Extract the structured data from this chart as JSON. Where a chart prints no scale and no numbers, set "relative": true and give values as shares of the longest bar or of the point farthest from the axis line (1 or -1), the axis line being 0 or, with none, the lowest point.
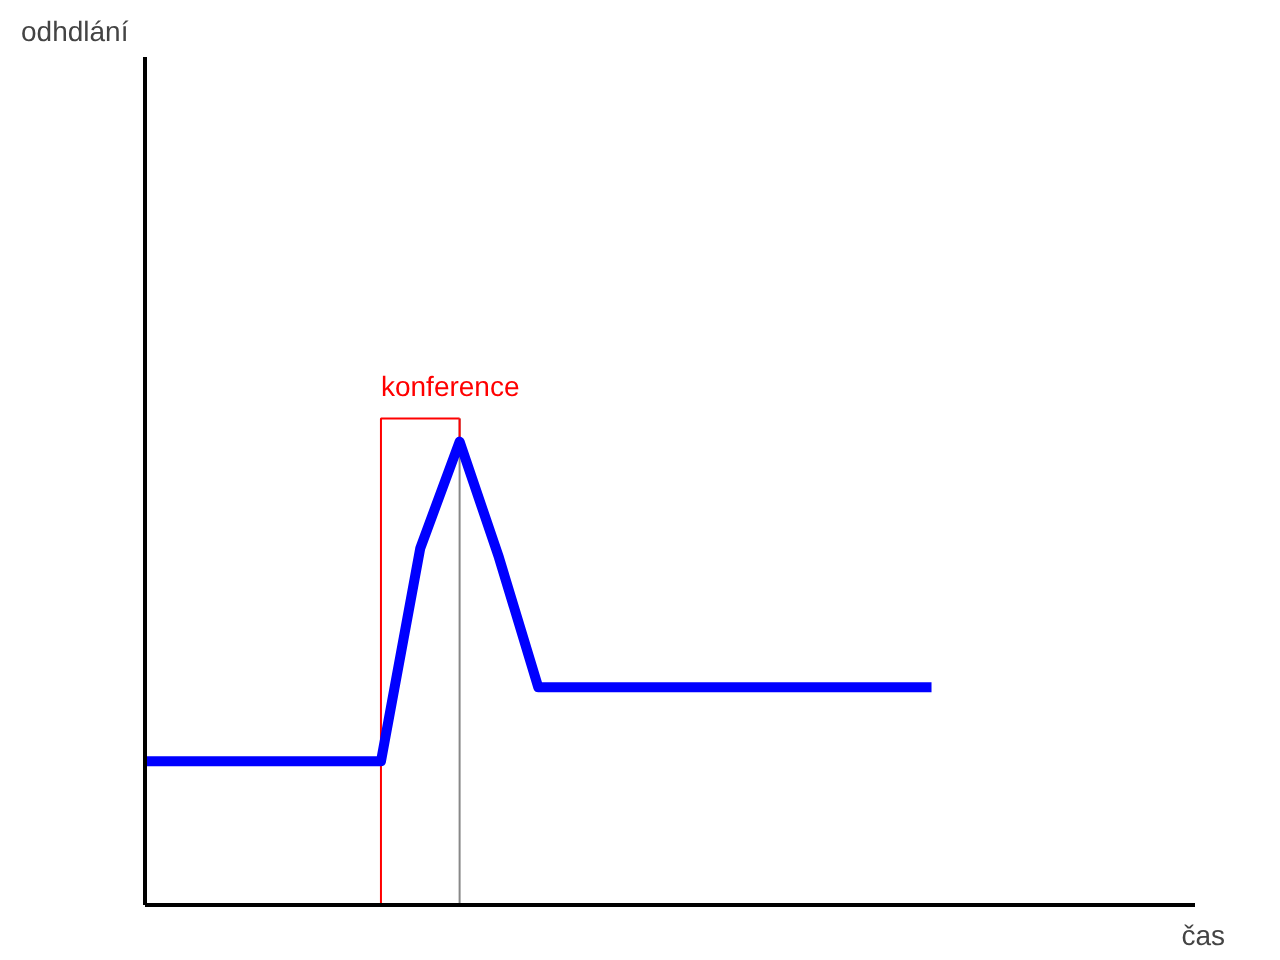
{
  "chart_data": {
    "type": "line",
    "relative": true,
    "xlabel": "čas",
    "annotations": [
      "odhdlání",
      "konference"
    ],
    "categories": [
      null,
      null,
      null,
      null,
      null,
      null,
      null,
      null,
      null,
      null,
      null,
      null,
      null,
      null,
      null,
      null,
      null,
      null,
      null,
      null,
      null,
      null,
      null,
      null,
      null,
      null,
      null
    ],
    "series": [
      {
        "color": "#0000ff",
        "values": [
          0.31,
          0.31,
          0.31,
          0.31,
          0.31,
          0.31,
          0.31,
          0.77,
          1.0,
          0.75,
          0.47,
          0.47,
          0.47,
          0.47,
          0.47,
          0.47,
          0.47,
          0.47,
          0.47,
          0.47,
          0.47,
          null,
          null,
          null,
          null,
          null,
          null
        ]
      }
    ],
    "marker": "none",
    "line_style": "solid"
  }
}
